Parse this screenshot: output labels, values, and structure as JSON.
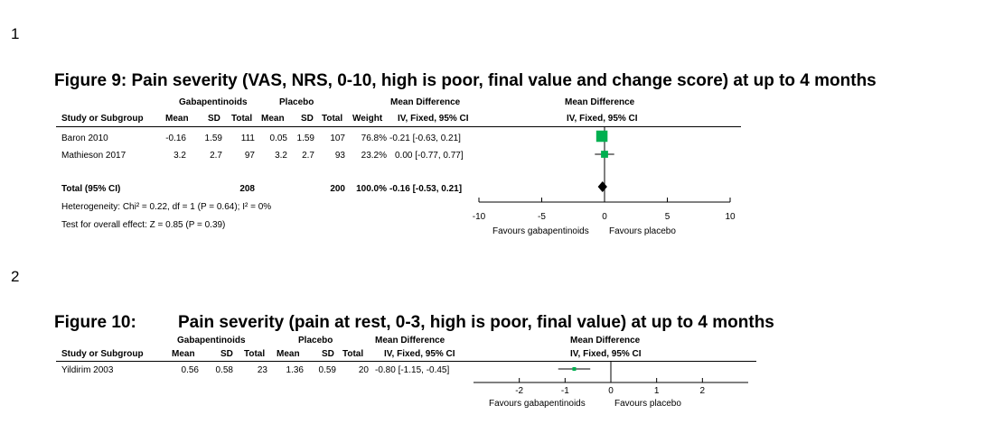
{
  "line_numbers": [
    "1",
    "2"
  ],
  "chart_data": [
    {
      "type": "forest",
      "title": "Figure 9: Pain severity (VAS, NRS, 0-10, high is poor, final value and change score) at up to 4 months",
      "group_headers": {
        "experimental": "Gabapentinoids",
        "control": "Placebo",
        "effect": "Mean Difference",
        "plot": "Mean Difference"
      },
      "columns": [
        "Study or Subgroup",
        "Mean",
        "SD",
        "Total",
        "Mean",
        "SD",
        "Total",
        "Weight",
        "IV, Fixed, 95% CI",
        "IV, Fixed, 95% CI"
      ],
      "studies": [
        {
          "name": "Baron 2010",
          "mean1": "-0.16",
          "sd1": "1.59",
          "n1": "111",
          "mean2": "0.05",
          "sd2": "1.59",
          "n2": "107",
          "weight": "76.8%",
          "ci_text": "-0.21 [-0.63, 0.21]",
          "md": -0.21,
          "lo": -0.63,
          "hi": 0.21,
          "w": 76.8
        },
        {
          "name": "Mathieson 2017",
          "mean1": "3.2",
          "sd1": "2.7",
          "n1": "97",
          "mean2": "3.2",
          "sd2": "2.7",
          "n2": "93",
          "weight": "23.2%",
          "ci_text": "0.00 [-0.77, 0.77]",
          "md": 0.0,
          "lo": -0.77,
          "hi": 0.77,
          "w": 23.2
        }
      ],
      "total": {
        "name": "Total (95% CI)",
        "n1": "208",
        "n2": "200",
        "weight": "100.0%",
        "ci_text": "-0.16 [-0.53, 0.21]",
        "md": -0.16,
        "lo": -0.53,
        "hi": 0.21
      },
      "heterogeneity": "Heterogeneity: Chi² = 0.22, df = 1 (P = 0.64); I² = 0%",
      "overall_effect": "Test for overall effect: Z = 0.85 (P = 0.39)",
      "xlim": [
        -10,
        10
      ],
      "ticks": [
        -10,
        -5,
        0,
        5,
        10
      ],
      "favours_left": "Favours gabapentinoids",
      "favours_right": "Favours placebo",
      "study_color": "#00b050",
      "total_color": "#000000"
    },
    {
      "type": "forest",
      "title_label": "Figure 10:",
      "title": "Pain severity (pain at rest, 0-3, high is poor, final value) at up to 4 months",
      "group_headers": {
        "experimental": "Gabapentinoids",
        "control": "Placebo",
        "effect": "Mean Difference",
        "plot": "Mean Difference"
      },
      "columns": [
        "Study or Subgroup",
        "Mean",
        "SD",
        "Total",
        "Mean",
        "SD",
        "Total",
        "IV, Fixed, 95% CI",
        "IV, Fixed, 95% CI"
      ],
      "studies": [
        {
          "name": "Yildirim 2003",
          "mean1": "0.56",
          "sd1": "0.58",
          "n1": "23",
          "mean2": "1.36",
          "sd2": "0.59",
          "n2": "20",
          "ci_text": "-0.80 [-1.15, -0.45]",
          "md": -0.8,
          "lo": -1.15,
          "hi": -0.45
        }
      ],
      "xlim": [
        -3,
        3
      ],
      "ticks": [
        -2,
        -1,
        0,
        1,
        2
      ],
      "favours_left": "Favours gabapentinoids",
      "favours_right": "Favours placebo",
      "study_color": "#00b050"
    }
  ]
}
